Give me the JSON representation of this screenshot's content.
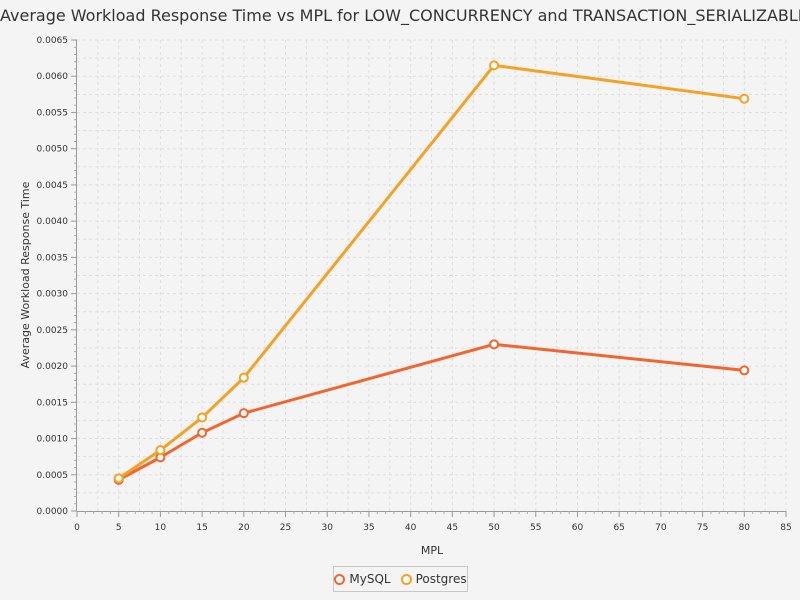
{
  "chart_data": {
    "type": "line",
    "title": "Average Workload Response Time vs MPL for LOW_CONCURRENCY and TRANSACTION_SERIALIZABLE",
    "xlabel": "MPL",
    "ylabel": "Average Workload Response Time",
    "xlim": [
      0,
      85
    ],
    "ylim": [
      0,
      0.0065
    ],
    "x_ticks": [
      "0",
      "5",
      "10",
      "15",
      "20",
      "25",
      "30",
      "35",
      "40",
      "45",
      "50",
      "55",
      "60",
      "65",
      "70",
      "75",
      "80",
      "85"
    ],
    "y_ticks": [
      "0.0000",
      "0.0005",
      "0.0010",
      "0.0015",
      "0.0020",
      "0.0025",
      "0.0030",
      "0.0035",
      "0.0040",
      "0.0045",
      "0.0050",
      "0.0055",
      "0.0060",
      "0.0065"
    ],
    "grid": true,
    "legend_position": "bottom-center",
    "series": [
      {
        "name": "MySQL",
        "color": "#f0662e",
        "x": [
          5,
          10,
          15,
          20,
          50,
          80
        ],
        "values": [
          0.00043,
          0.00074,
          0.00108,
          0.00135,
          0.0023,
          0.00194
        ]
      },
      {
        "name": "Postgres",
        "color": "#f4a124",
        "x": [
          5,
          10,
          15,
          20,
          50,
          80
        ],
        "values": [
          0.00045,
          0.00084,
          0.00129,
          0.00184,
          0.00615,
          0.00569
        ]
      }
    ]
  }
}
